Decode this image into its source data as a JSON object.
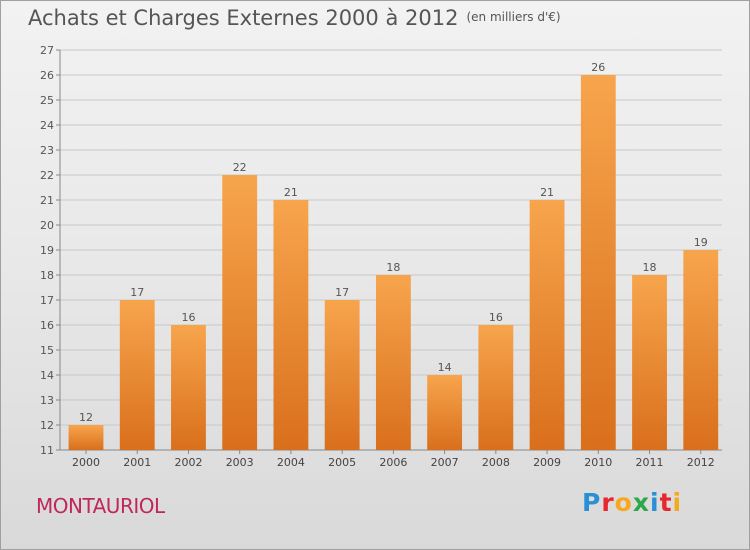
{
  "chart_data": {
    "type": "bar",
    "title": "Achats et Charges Externes 2000 à 2012",
    "subtitle": "(en milliers d'€)",
    "categories": [
      "2000",
      "2001",
      "2002",
      "2003",
      "2004",
      "2005",
      "2006",
      "2007",
      "2008",
      "2009",
      "2010",
      "2011",
      "2012"
    ],
    "values": [
      12,
      17,
      16,
      22,
      21,
      17,
      18,
      14,
      16,
      21,
      26,
      18,
      19
    ],
    "ylim": [
      11,
      27
    ],
    "yticks": [
      11,
      12,
      13,
      14,
      15,
      16,
      17,
      18,
      19,
      20,
      21,
      22,
      23,
      24,
      25,
      26,
      27
    ],
    "grid": true,
    "bar_color_top": "#f7a54d",
    "bar_color_bottom": "#d96f1c"
  },
  "footer": {
    "commune": "MONTAURIOL",
    "logo_letters": [
      {
        "char": "P",
        "color": "#2b8fd6"
      },
      {
        "char": "r",
        "color": "#e8262f"
      },
      {
        "char": "o",
        "color": "#f6a81f"
      },
      {
        "char": "x",
        "color": "#2aa84a"
      },
      {
        "char": "i",
        "color": "#2b8fd6"
      },
      {
        "char": "t",
        "color": "#e8262f"
      },
      {
        "char": "i",
        "color": "#f6a81f"
      }
    ]
  }
}
